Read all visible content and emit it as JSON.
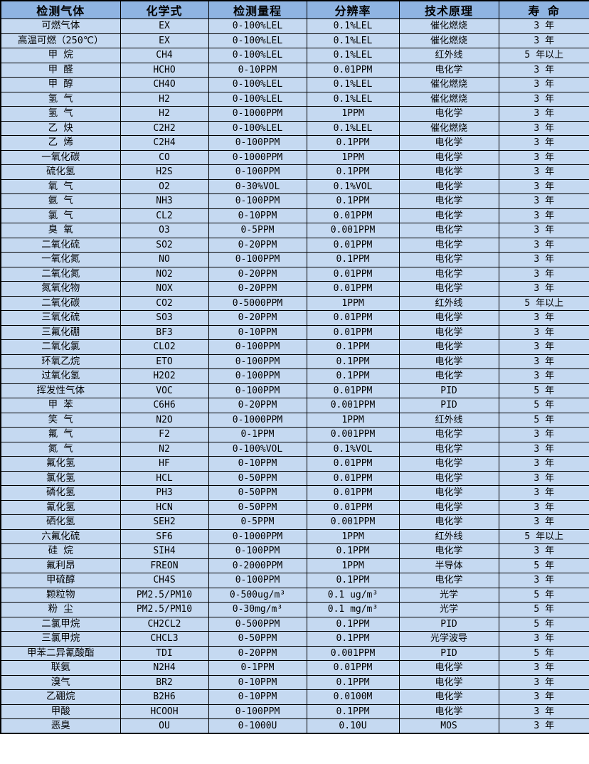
{
  "colors": {
    "header_bg": "#8fb4e2",
    "row_bg": "#c5d9f1",
    "border": "#000000",
    "text": "#000000"
  },
  "table": {
    "columns": [
      "检测气体",
      "化学式",
      "检测量程",
      "分辨率",
      "技术原理",
      "寿 命"
    ],
    "rows": [
      [
        "可燃气体",
        "EX",
        "0-100%LEL",
        "0.1%LEL",
        "催化燃烧",
        "3 年"
      ],
      [
        "高温可燃（250℃）",
        "EX",
        "0-100%LEL",
        "0.1%LEL",
        "催化燃烧",
        "3 年"
      ],
      [
        "甲 烷",
        "CH4",
        "0-100%LEL",
        "0.1%LEL",
        "红外线",
        "5 年以上"
      ],
      [
        "甲 醛",
        "HCHO",
        "0-10PPM",
        "0.01PPM",
        "电化学",
        "3 年"
      ],
      [
        "甲 醇",
        "CH4O",
        "0-100%LEL",
        "0.1%LEL",
        "催化燃烧",
        "3 年"
      ],
      [
        "氢 气",
        "H2",
        "0-100%LEL",
        "0.1%LEL",
        "催化燃烧",
        "3 年"
      ],
      [
        "氢 气",
        "H2",
        "0-1000PPM",
        "1PPM",
        "电化学",
        "3 年"
      ],
      [
        "乙 炔",
        "C2H2",
        "0-100%LEL",
        "0.1%LEL",
        "催化燃烧",
        "3 年"
      ],
      [
        "乙 烯",
        "C2H4",
        "0-100PPM",
        "0.1PPM",
        "电化学",
        "3 年"
      ],
      [
        "一氧化碳",
        "CO",
        "0-1000PPM",
        "1PPM",
        "电化学",
        "3 年"
      ],
      [
        "硫化氢",
        "H2S",
        "0-100PPM",
        "0.1PPM",
        "电化学",
        "3 年"
      ],
      [
        "氧 气",
        "O2",
        "0-30%VOL",
        "0.1%VOL",
        "电化学",
        "3 年"
      ],
      [
        "氨 气",
        "NH3",
        "0-100PPM",
        "0.1PPM",
        "电化学",
        "3 年"
      ],
      [
        "氯 气",
        "CL2",
        "0-10PPM",
        "0.01PPM",
        "电化学",
        "3 年"
      ],
      [
        "臭 氧",
        "O3",
        "0-5PPM",
        "0.001PPM",
        "电化学",
        "3 年"
      ],
      [
        "二氧化硫",
        "SO2",
        "0-20PPM",
        "0.01PPM",
        "电化学",
        "3 年"
      ],
      [
        "一氧化氮",
        "NO",
        "0-100PPM",
        "0.1PPM",
        "电化学",
        "3 年"
      ],
      [
        "二氧化氮",
        "NO2",
        "0-20PPM",
        "0.01PPM",
        "电化学",
        "3 年"
      ],
      [
        "氮氧化物",
        "NOX",
        "0-20PPM",
        "0.01PPM",
        "电化学",
        "3 年"
      ],
      [
        "二氧化碳",
        "CO2",
        "0-5000PPM",
        "1PPM",
        "红外线",
        "5 年以上"
      ],
      [
        "三氧化硫",
        "SO3",
        "0-20PPM",
        "0.01PPM",
        "电化学",
        "3 年"
      ],
      [
        "三氟化硼",
        "BF3",
        "0-10PPM",
        "0.01PPM",
        "电化学",
        "3 年"
      ],
      [
        "二氧化氯",
        "CLO2",
        "0-100PPM",
        "0.1PPM",
        "电化学",
        "3 年"
      ],
      [
        "环氧乙烷",
        "ETO",
        "0-100PPM",
        "0.1PPM",
        "电化学",
        "3 年"
      ],
      [
        "过氧化氢",
        "H2O2",
        "0-100PPM",
        "0.1PPM",
        "电化学",
        "3 年"
      ],
      [
        "挥发性气体",
        "VOC",
        "0-100PPM",
        "0.01PPM",
        "PID",
        "5 年"
      ],
      [
        "甲 苯",
        "C6H6",
        "0-20PPM",
        "0.001PPM",
        "PID",
        "5 年"
      ],
      [
        "笑 气",
        "N2O",
        "0-1000PPM",
        "1PPM",
        "红外线",
        "5 年"
      ],
      [
        "氟 气",
        "F2",
        "0-1PPM",
        "0.001PPM",
        "电化学",
        "3 年"
      ],
      [
        "氮 气",
        "N2",
        "0-100%VOL",
        "0.1%VOL",
        "电化学",
        "3 年"
      ],
      [
        "氟化氢",
        "HF",
        "0-10PPM",
        "0.01PPM",
        "电化学",
        "3 年"
      ],
      [
        "氯化氢",
        "HCL",
        "0-50PPM",
        "0.01PPM",
        "电化学",
        "3 年"
      ],
      [
        "磷化氢",
        "PH3",
        "0-50PPM",
        "0.01PPM",
        "电化学",
        "3 年"
      ],
      [
        "氰化氢",
        "HCN",
        "0-50PPM",
        "0.01PPM",
        "电化学",
        "3 年"
      ],
      [
        "硒化氢",
        "SEH2",
        "0-5PPM",
        "0.001PPM",
        "电化学",
        "3 年"
      ],
      [
        "六氟化硫",
        "SF6",
        "0-1000PPM",
        "1PPM",
        "红外线",
        "5 年以上"
      ],
      [
        "硅 烷",
        "SIH4",
        "0-100PPM",
        "0.1PPM",
        "电化学",
        "3 年"
      ],
      [
        "氟利昂",
        "FREON",
        "0-2000PPM",
        "1PPM",
        "半导体",
        "5 年"
      ],
      [
        "甲硫醇",
        "CH4S",
        "0-100PPM",
        "0.1PPM",
        "电化学",
        "3 年"
      ],
      [
        "颗粒物",
        "PM2.5/PM10",
        "0-500ug/m³",
        "0.1 ug/m³",
        "光学",
        "5 年"
      ],
      [
        "粉 尘",
        "PM2.5/PM10",
        "0-30mg/m³",
        "0.1 mg/m³",
        "光学",
        "5 年"
      ],
      [
        "二氯甲烷",
        "CH2CL2",
        "0-500PPM",
        "0.1PPM",
        "PID",
        "5 年"
      ],
      [
        "三氯甲烷",
        "CHCL3",
        "0-50PPM",
        "0.1PPM",
        "光学波导",
        "3 年"
      ],
      [
        "甲苯二异氰酸酯",
        "TDI",
        "0-20PPM",
        "0.001PPM",
        "PID",
        "5 年"
      ],
      [
        "联氨",
        "N2H4",
        "0-1PPM",
        "0.01PPM",
        "电化学",
        "3 年"
      ],
      [
        "溴气",
        "BR2",
        "0-10PPM",
        "0.1PPM",
        "电化学",
        "3 年"
      ],
      [
        "乙硼烷",
        "B2H6",
        "0-10PPM",
        "0.0100M",
        "电化学",
        "3 年"
      ],
      [
        "甲酸",
        "HCOOH",
        "0-100PPM",
        "0.1PPM",
        "电化学",
        "3 年"
      ],
      [
        "恶臭",
        "OU",
        "0-1000U",
        "0.10U",
        "MOS",
        "3 年"
      ]
    ]
  }
}
